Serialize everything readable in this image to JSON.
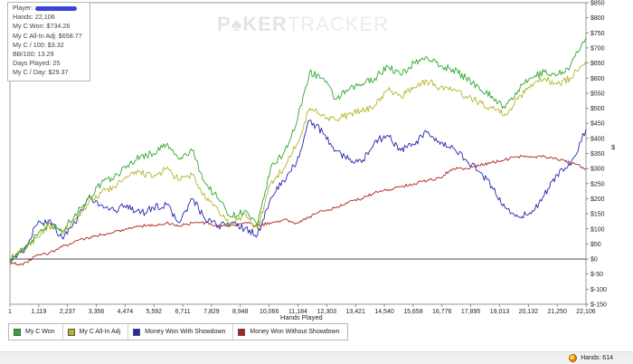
{
  "watermark": {
    "left": "P",
    "spade": "♠",
    "mid": "KER",
    "right": "TRACKER"
  },
  "stats": {
    "player": "Player:",
    "hands": "Hands: 22,106",
    "won": "My C Won: $734.26",
    "allin_adj": "My C All-In Adj: $658.77",
    "per100": "My C / 100: $3.32",
    "bb100": "BB/100: 13.29",
    "days": "Days Played: 25",
    "per_day": "My C / Day: $29.37"
  },
  "status": {
    "hands": "Hands: 614"
  },
  "colors": {
    "green": "#2fa82f",
    "olive": "#b4b42a",
    "blue": "#2626b0",
    "red": "#b02020"
  },
  "chart_data": {
    "type": "line",
    "xlabel": "Hands Played",
    "ylabel": "$",
    "xlim": [
      1,
      22106
    ],
    "ylim": [
      -150,
      850
    ],
    "x_ticks": [
      "1",
      "1,119",
      "2,237",
      "3,356",
      "4,474",
      "5,592",
      "6,711",
      "7,829",
      "8,948",
      "10,066",
      "11,184",
      "12,303",
      "13,421",
      "14,540",
      "15,658",
      "16,776",
      "17,895",
      "19,013",
      "20,132",
      "21,250",
      "22,106"
    ],
    "y_ticks": [
      "$-150",
      "$-100",
      "$-50",
      "$0",
      "$50",
      "$100",
      "$150",
      "$200",
      "$250",
      "$300",
      "$350",
      "$400",
      "$450",
      "$500",
      "$550",
      "$600",
      "$650",
      "$700",
      "$750",
      "$800",
      "$850"
    ],
    "x": [
      1,
      500,
      1000,
      1500,
      2000,
      2500,
      3000,
      3500,
      4000,
      4500,
      5000,
      5500,
      6000,
      6500,
      7000,
      7500,
      8000,
      8500,
      9000,
      9500,
      10000,
      10500,
      11000,
      11500,
      12000,
      12500,
      13000,
      13500,
      14000,
      14500,
      15000,
      15500,
      16000,
      16500,
      17000,
      17500,
      18000,
      18500,
      19000,
      19500,
      20000,
      20500,
      21000,
      21500,
      22106
    ],
    "series": [
      {
        "name": "My C Won",
        "color": "#2fa82f",
        "values": [
          0,
          30,
          80,
          120,
          90,
          150,
          200,
          250,
          270,
          310,
          340,
          350,
          380,
          330,
          360,
          250,
          200,
          140,
          160,
          110,
          300,
          350,
          450,
          620,
          600,
          530,
          560,
          580,
          600,
          640,
          610,
          650,
          670,
          640,
          630,
          600,
          570,
          540,
          500,
          560,
          600,
          620,
          610,
          640,
          734
        ]
      },
      {
        "name": "My C All-In Adj",
        "color": "#b4b42a",
        "values": [
          0,
          25,
          70,
          110,
          85,
          130,
          180,
          220,
          240,
          270,
          290,
          270,
          300,
          260,
          280,
          200,
          160,
          110,
          150,
          100,
          250,
          300,
          380,
          500,
          480,
          460,
          480,
          490,
          510,
          560,
          540,
          570,
          590,
          570,
          560,
          540,
          520,
          500,
          480,
          530,
          580,
          600,
          580,
          600,
          658
        ]
      },
      {
        "name": "Money Won With Showdown",
        "color": "#2626b0",
        "values": [
          0,
          20,
          110,
          130,
          70,
          120,
          200,
          180,
          160,
          180,
          150,
          170,
          180,
          120,
          200,
          130,
          110,
          120,
          100,
          80,
          200,
          260,
          320,
          460,
          420,
          360,
          330,
          320,
          390,
          410,
          360,
          380,
          420,
          380,
          370,
          330,
          290,
          240,
          170,
          140,
          150,
          210,
          280,
          310,
          430
        ]
      },
      {
        "name": "Money Won Without Showdown",
        "color": "#b02020",
        "values": [
          -10,
          -20,
          10,
          20,
          40,
          60,
          70,
          80,
          90,
          100,
          110,
          110,
          120,
          110,
          120,
          120,
          110,
          110,
          120,
          110,
          120,
          130,
          120,
          140,
          160,
          170,
          190,
          200,
          220,
          230,
          240,
          250,
          260,
          270,
          300,
          300,
          310,
          320,
          330,
          340,
          340,
          340,
          330,
          320,
          300
        ]
      }
    ]
  }
}
